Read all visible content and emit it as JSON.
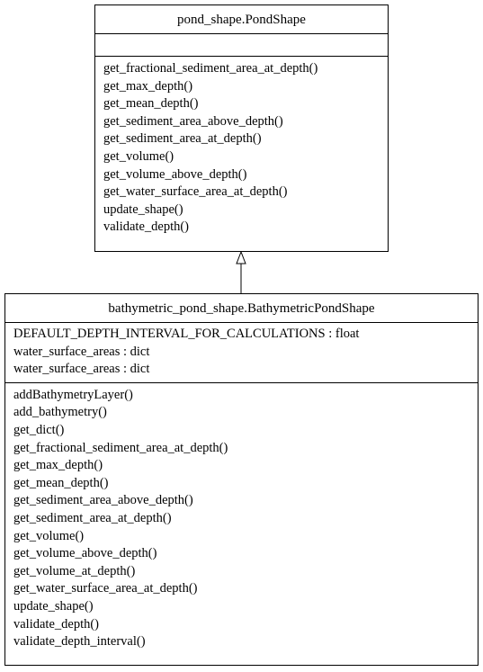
{
  "parent_class": {
    "name": "pond_shape.PondShape",
    "attributes": [],
    "methods": [
      "get_fractional_sediment_area_at_depth()",
      "get_max_depth()",
      "get_mean_depth()",
      "get_sediment_area_above_depth()",
      "get_sediment_area_at_depth()",
      "get_volume()",
      "get_volume_above_depth()",
      "get_water_surface_area_at_depth()",
      "update_shape()",
      "validate_depth()"
    ]
  },
  "child_class": {
    "name": "bathymetric_pond_shape.BathymetricPondShape",
    "attributes": [
      "DEFAULT_DEPTH_INTERVAL_FOR_CALCULATIONS : float",
      "water_surface_areas : dict",
      "water_surface_areas : dict"
    ],
    "methods": [
      "addBathymetryLayer()",
      "add_bathymetry()",
      "get_dict()",
      "get_fractional_sediment_area_at_depth()",
      "get_max_depth()",
      "get_mean_depth()",
      "get_sediment_area_above_depth()",
      "get_sediment_area_at_depth()",
      "get_volume()",
      "get_volume_above_depth()",
      "get_volume_at_depth()",
      "get_water_surface_area_at_depth()",
      "update_shape()",
      "validate_depth()",
      "validate_depth_interval()"
    ]
  },
  "relationship": {
    "type": "inheritance",
    "from": "bathymetric_pond_shape.BathymetricPondShape",
    "to": "pond_shape.PondShape"
  }
}
